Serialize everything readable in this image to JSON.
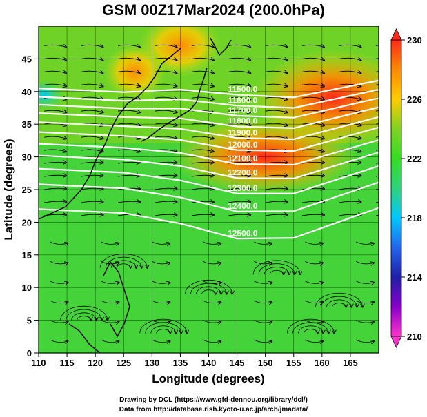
{
  "title": "GSM 00Z17Mar2024 (200.0hPa)",
  "credits": [
    "Drawing by DCL (https://www.gfd-dennou.org/library/dcl/)",
    "Data from http://database.rish.kyoto-u.ac.jp/arch/jmadata/"
  ],
  "chart_data": {
    "type": "heatmap",
    "variable": "200 hPa temperature (K) with geopotential height contours and wind streamlines",
    "xlabel": "Longitude (degrees)",
    "ylabel": "Latitude  (degrees)",
    "xlim": [
      110,
      170
    ],
    "ylim": [
      0,
      50
    ],
    "x_ticks": [
      110,
      115,
      120,
      125,
      130,
      135,
      140,
      145,
      150,
      155,
      160,
      165
    ],
    "y_ticks": [
      0,
      5,
      10,
      15,
      20,
      25,
      30,
      35,
      40,
      45
    ],
    "grid": true,
    "colorbar": {
      "position": "right",
      "range": [
        210,
        230
      ],
      "tick_labels": [
        230,
        226,
        222,
        218,
        214,
        210
      ],
      "colors": [
        {
          "value": 210,
          "color": "#ff33cc"
        },
        {
          "value": 212,
          "color": "#8800cc"
        },
        {
          "value": 214,
          "color": "#1f1fa8"
        },
        {
          "value": 216,
          "color": "#2266ee"
        },
        {
          "value": 218,
          "color": "#00c8ff"
        },
        {
          "value": 220,
          "color": "#2ed27a"
        },
        {
          "value": 222,
          "color": "#33dd22"
        },
        {
          "value": 224,
          "color": "#7ed321"
        },
        {
          "value": 226,
          "color": "#ffcc00"
        },
        {
          "value": 228,
          "color": "#ff8a00"
        },
        {
          "value": 230,
          "color": "#ff2a1a"
        }
      ]
    },
    "contours": {
      "color": "#ffffff",
      "labels": [
        "11500.0",
        "11600.0",
        "11700.0",
        "11800.0",
        "11900.0",
        "12000.0",
        "12100.0",
        "12200.0",
        "12300.0",
        "12400.0",
        "12500.0"
      ]
    },
    "warm_regions_K": [
      {
        "lon": 162,
        "lat": 39,
        "value": 230
      },
      {
        "lon": 150,
        "lat": 30,
        "value": 229
      },
      {
        "lon": 135,
        "lat": 47,
        "value": 227
      },
      {
        "lon": 127,
        "lat": 43,
        "value": 227
      }
    ],
    "cold_regions_K": [
      {
        "lon": 111,
        "lat": 39.5,
        "value": 218
      }
    ]
  }
}
